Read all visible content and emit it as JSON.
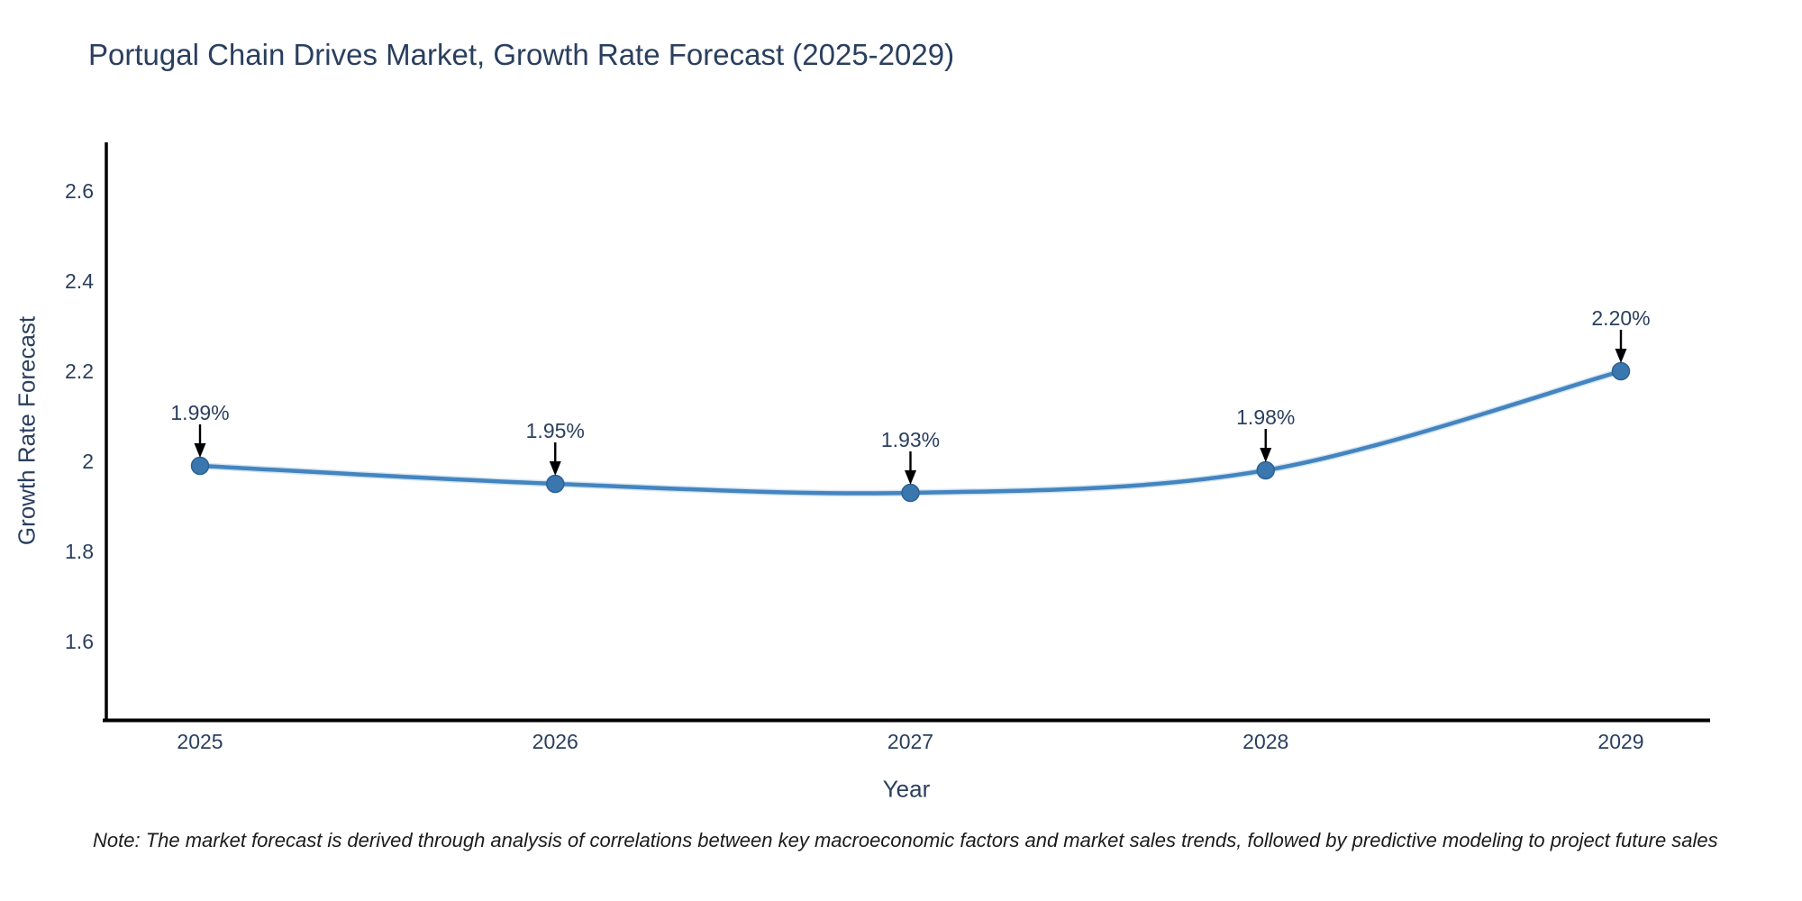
{
  "note": "Note: The market forecast is derived through analysis of correlations between key macroeconomic factors and market sales trends, followed by predictive modeling to project future sales",
  "chart_data": {
    "type": "line",
    "title": "Portugal Chain Drives Market, Growth Rate Forecast (2025-2029)",
    "xlabel": "Year",
    "ylabel": "Growth Rate Forecast",
    "x": [
      2025,
      2026,
      2027,
      2028,
      2029
    ],
    "series": [
      {
        "name": "Growth Rate Forecast",
        "values": [
          1.99,
          1.95,
          1.93,
          1.98,
          2.2
        ],
        "point_labels": [
          "1.99%",
          "1.95%",
          "1.93%",
          "1.98%",
          "2.20%"
        ]
      }
    ],
    "y_ticks": [
      1.6,
      1.8,
      2,
      2.2,
      2.4,
      2.6
    ],
    "ylim": [
      1.42,
      2.71
    ],
    "line_shape": "spline",
    "grid": false,
    "legend_position": "none",
    "colors": {
      "line": "#4484bf",
      "line_halo": "#aecfe9",
      "marker": "#3a77af",
      "marker_edge": "#2d6296",
      "axis": "#000000",
      "text": "#2a3f5f",
      "annotation_text": "#2a3f5f",
      "annotation_arrow": "#000000",
      "background": "#ffffff"
    }
  }
}
